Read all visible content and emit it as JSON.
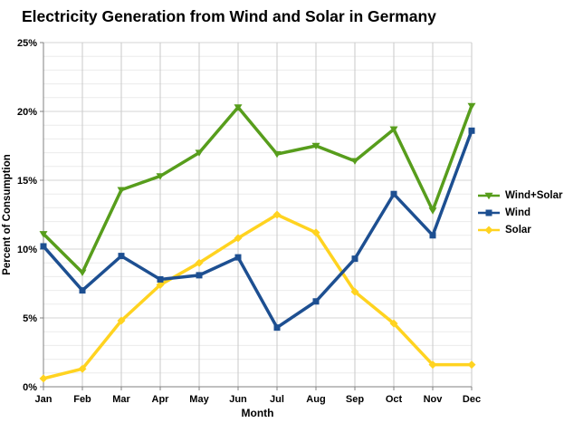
{
  "chart_data": {
    "type": "line",
    "title": "Electricity Generation from Wind and Solar in Germany",
    "xlabel": "Month",
    "ylabel": "Percent of Consumption",
    "ylim": [
      0,
      25
    ],
    "ytick_step": 5,
    "ytick_suffix": "%",
    "minor_grid_step": 1,
    "grid": true,
    "legend_position": "right",
    "categories": [
      "Jan",
      "Feb",
      "Mar",
      "Apr",
      "May",
      "Jun",
      "Jul",
      "Aug",
      "Sep",
      "Oct",
      "Nov",
      "Dec"
    ],
    "series": [
      {
        "name": "Wind+Solar",
        "color": "#579D1C",
        "marker": "triangle-down",
        "values": [
          11.1,
          8.3,
          14.3,
          15.3,
          17.0,
          20.3,
          16.9,
          17.5,
          16.4,
          18.7,
          12.8,
          20.4
        ]
      },
      {
        "name": "Wind",
        "color": "#1D4F91",
        "marker": "square",
        "values": [
          10.2,
          7.0,
          9.5,
          7.8,
          8.1,
          9.4,
          4.3,
          6.2,
          9.3,
          14.0,
          11.0,
          18.6
        ]
      },
      {
        "name": "Solar",
        "color": "#FFD320",
        "marker": "diamond",
        "values": [
          0.6,
          1.3,
          4.8,
          7.4,
          9.0,
          10.8,
          12.5,
          11.2,
          6.9,
          4.6,
          1.6,
          1.6
        ]
      }
    ],
    "colors": {
      "axis_line": "#808080",
      "major_grid": "#d6d6d6",
      "minor_grid": "#ebebeb",
      "vertical_grid": "#c9c9c9"
    }
  }
}
